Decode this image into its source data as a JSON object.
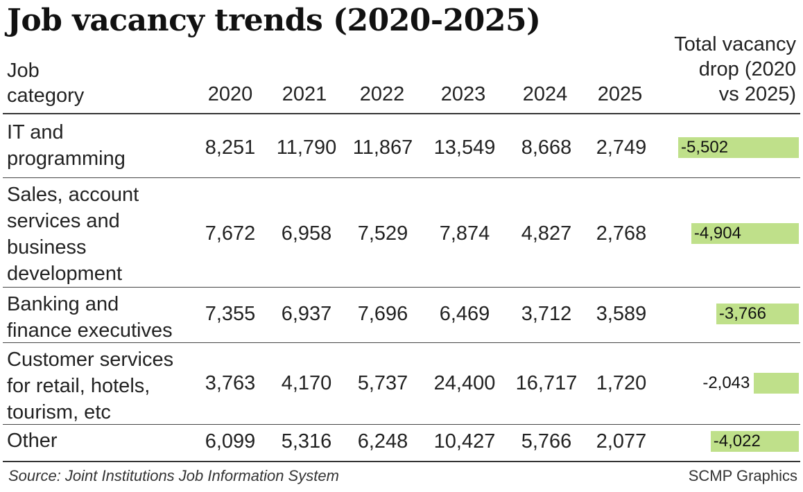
{
  "title": "Job vacancy trends (2020-2025)",
  "header": {
    "job_category": [
      "Job",
      "category"
    ],
    "years": [
      "2020",
      "2021",
      "2022",
      "2023",
      "2024",
      "2025"
    ],
    "drop": [
      "Total vacancy",
      "drop (2020",
      "vs 2025)"
    ]
  },
  "rows": [
    {
      "category": [
        "IT and",
        "programming"
      ],
      "values": [
        "8,251",
        "11,790",
        "11,867",
        "13,549",
        "8,668",
        "2,749"
      ],
      "drop_label": "-5,502",
      "drop_value": -5502
    },
    {
      "category": [
        "Sales, account",
        "services and",
        "business",
        "development"
      ],
      "values": [
        "7,672",
        "6,958",
        "7,529",
        "7,874",
        "4,827",
        "2,768"
      ],
      "drop_label": "-4,904",
      "drop_value": -4904
    },
    {
      "category": [
        "Banking and",
        "finance executives"
      ],
      "values": [
        "7,355",
        "6,937",
        "7,696",
        "6,469",
        "3,712",
        "3,589"
      ],
      "drop_label": "-3,766",
      "drop_value": -3766
    },
    {
      "category": [
        "Customer services",
        "for retail, hotels,",
        "tourism, etc"
      ],
      "values": [
        "3,763",
        "4,170",
        "5,737",
        "24,400",
        "16,717",
        "1,720"
      ],
      "drop_label": "-2,043",
      "drop_value": -2043
    },
    {
      "category": [
        "Other"
      ],
      "values": [
        "6,099",
        "5,316",
        "6,248",
        "10,427",
        "5,766",
        "2,077"
      ],
      "drop_label": "-4,022",
      "drop_value": -4022
    }
  ],
  "source": "Source: Joint Institutions Job Information System",
  "credit": "SCMP Graphics",
  "colors": {
    "bar": "#bfe08a",
    "rule": "#333333"
  },
  "chart_data": {
    "type": "table",
    "title": "Job vacancy trends (2020-2025)",
    "columns": [
      "Job category",
      "2020",
      "2021",
      "2022",
      "2023",
      "2024",
      "2025",
      "Total vacancy drop (2020 vs 2025)"
    ],
    "categories": [
      "IT and programming",
      "Sales, account services and business development",
      "Banking and finance executives",
      "Customer services for retail, hotels, tourism, etc",
      "Other"
    ],
    "series": [
      {
        "name": "2020",
        "values": [
          8251,
          7672,
          7355,
          3763,
          6099
        ]
      },
      {
        "name": "2021",
        "values": [
          11790,
          6958,
          6937,
          4170,
          5316
        ]
      },
      {
        "name": "2022",
        "values": [
          11867,
          7529,
          7696,
          5737,
          6248
        ]
      },
      {
        "name": "2023",
        "values": [
          13549,
          7874,
          6469,
          24400,
          10427
        ]
      },
      {
        "name": "2024",
        "values": [
          8668,
          4827,
          3712,
          16717,
          5766
        ]
      },
      {
        "name": "2025",
        "values": [
          2749,
          2768,
          3589,
          1720,
          2077
        ]
      },
      {
        "name": "Total vacancy drop (2020 vs 2025)",
        "values": [
          -5502,
          -4904,
          -3766,
          -2043,
          -4022
        ]
      }
    ]
  }
}
